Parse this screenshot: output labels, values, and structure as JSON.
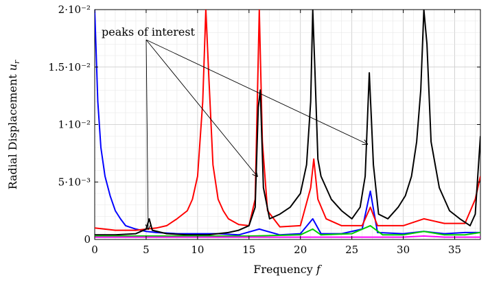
{
  "chart_data": {
    "type": "line",
    "xlabel": "Frequency f",
    "ylabel": "Radial Displacement u_r",
    "xlim": [
      0,
      37.5
    ],
    "ylim": [
      0,
      0.02
    ],
    "grid": "on",
    "x_ticks": [
      0,
      5,
      10,
      15,
      20,
      25,
      30,
      35
    ],
    "y_ticks": [
      {
        "value": 0,
        "label": "0"
      },
      {
        "value": 0.005,
        "label": "5·10⁻³"
      },
      {
        "value": 0.01,
        "label": "1·10⁻²"
      },
      {
        "value": 0.015,
        "label": "1.5·10⁻²"
      },
      {
        "value": 0.02,
        "label": "2·10⁻²"
      }
    ],
    "annotation": {
      "text": "peaks of interest",
      "arrow_targets": [
        {
          "x": 5.2,
          "y": 0.0009
        },
        {
          "x": 15.8,
          "y": 0.0055
        },
        {
          "x": 26.5,
          "y": 0.0083
        }
      ]
    },
    "series": [
      {
        "color": "#0000ff",
        "x": [
          0,
          0.3,
          0.6,
          1.0,
          1.5,
          2.0,
          2.5,
          3.0,
          4.0,
          5.0,
          6.0,
          8.0,
          10.0,
          12.0,
          14.0,
          16.0,
          18.0,
          20.0,
          21.2,
          22.0,
          24.0,
          26.0,
          26.8,
          27.5,
          30.0,
          32.0,
          34.0,
          36.0,
          37.5
        ],
        "y": [
          0.02,
          0.012,
          0.008,
          0.0055,
          0.0038,
          0.0025,
          0.0018,
          0.0012,
          0.0009,
          0.0007,
          0.0006,
          0.0005,
          0.0005,
          0.0005,
          0.0004,
          0.0009,
          0.0004,
          0.0005,
          0.0018,
          0.0005,
          0.0005,
          0.0009,
          0.0042,
          0.0006,
          0.0005,
          0.0007,
          0.0005,
          0.0006,
          0.0006
        ]
      },
      {
        "color": "#ff0000",
        "x": [
          0,
          2,
          4,
          6,
          7,
          8,
          9,
          9.5,
          10,
          10.5,
          10.8,
          11.1,
          11.5,
          12,
          12.5,
          13,
          14,
          15,
          15.6,
          16.0,
          16.3,
          16.8,
          18,
          20,
          21.0,
          21.3,
          21.7,
          22.5,
          24,
          26,
          26.8,
          27.5,
          30,
          32,
          34,
          36,
          37,
          37.5
        ],
        "y": [
          0.001,
          0.0008,
          0.0008,
          0.001,
          0.0012,
          0.0018,
          0.0025,
          0.0035,
          0.0055,
          0.012,
          0.02,
          0.014,
          0.0065,
          0.0035,
          0.0025,
          0.0018,
          0.0013,
          0.0012,
          0.0035,
          0.02,
          0.0085,
          0.0025,
          0.0011,
          0.0012,
          0.0045,
          0.007,
          0.0035,
          0.0018,
          0.0012,
          0.0012,
          0.0028,
          0.0012,
          0.0012,
          0.0018,
          0.0014,
          0.0014,
          0.0035,
          0.0055
        ]
      },
      {
        "color": "#000000",
        "x": [
          0,
          2,
          4,
          5.0,
          5.3,
          5.6,
          7,
          9,
          11,
          13,
          14,
          15,
          15.6,
          15.9,
          16.1,
          16.4,
          17,
          18,
          19,
          20,
          20.6,
          21.0,
          21.2,
          21.4,
          21.7,
          22,
          23,
          24,
          25,
          25.8,
          26.3,
          26.7,
          27.1,
          27.6,
          28.5,
          29.5,
          30.2,
          30.8,
          31.3,
          31.7,
          32.0,
          32.3,
          32.7,
          33.5,
          34.5,
          35.5,
          36.5,
          37.0,
          37.5
        ],
        "y": [
          0.0004,
          0.0004,
          0.0005,
          0.0009,
          0.0018,
          0.0008,
          0.0005,
          0.0004,
          0.0004,
          0.0006,
          0.0008,
          0.0012,
          0.0028,
          0.0115,
          0.013,
          0.0045,
          0.0018,
          0.0022,
          0.0028,
          0.004,
          0.0065,
          0.012,
          0.02,
          0.015,
          0.007,
          0.0055,
          0.0035,
          0.0025,
          0.0018,
          0.0028,
          0.0055,
          0.0145,
          0.0065,
          0.0022,
          0.0018,
          0.0028,
          0.0038,
          0.0055,
          0.0085,
          0.013,
          0.02,
          0.017,
          0.0085,
          0.0045,
          0.0025,
          0.0018,
          0.0012,
          0.0022,
          0.009
        ]
      },
      {
        "color": "#00cc00",
        "x": [
          0,
          5,
          10,
          15,
          20,
          21.2,
          22,
          25,
          26.8,
          28,
          30,
          32,
          34,
          36,
          37.5
        ],
        "y": [
          0.0003,
          0.0003,
          0.0003,
          0.0003,
          0.0004,
          0.0009,
          0.0004,
          0.0005,
          0.0012,
          0.0004,
          0.0004,
          0.0007,
          0.0004,
          0.0004,
          0.0006
        ]
      },
      {
        "color": "#ff00ff",
        "x": [
          0,
          5,
          10,
          15,
          20,
          25,
          30,
          32,
          34,
          36,
          37.5
        ],
        "y": [
          0.0002,
          0.0002,
          0.0002,
          0.0002,
          0.0002,
          0.0002,
          0.0002,
          0.0003,
          0.0002,
          0.0002,
          0.0002
        ]
      }
    ]
  }
}
